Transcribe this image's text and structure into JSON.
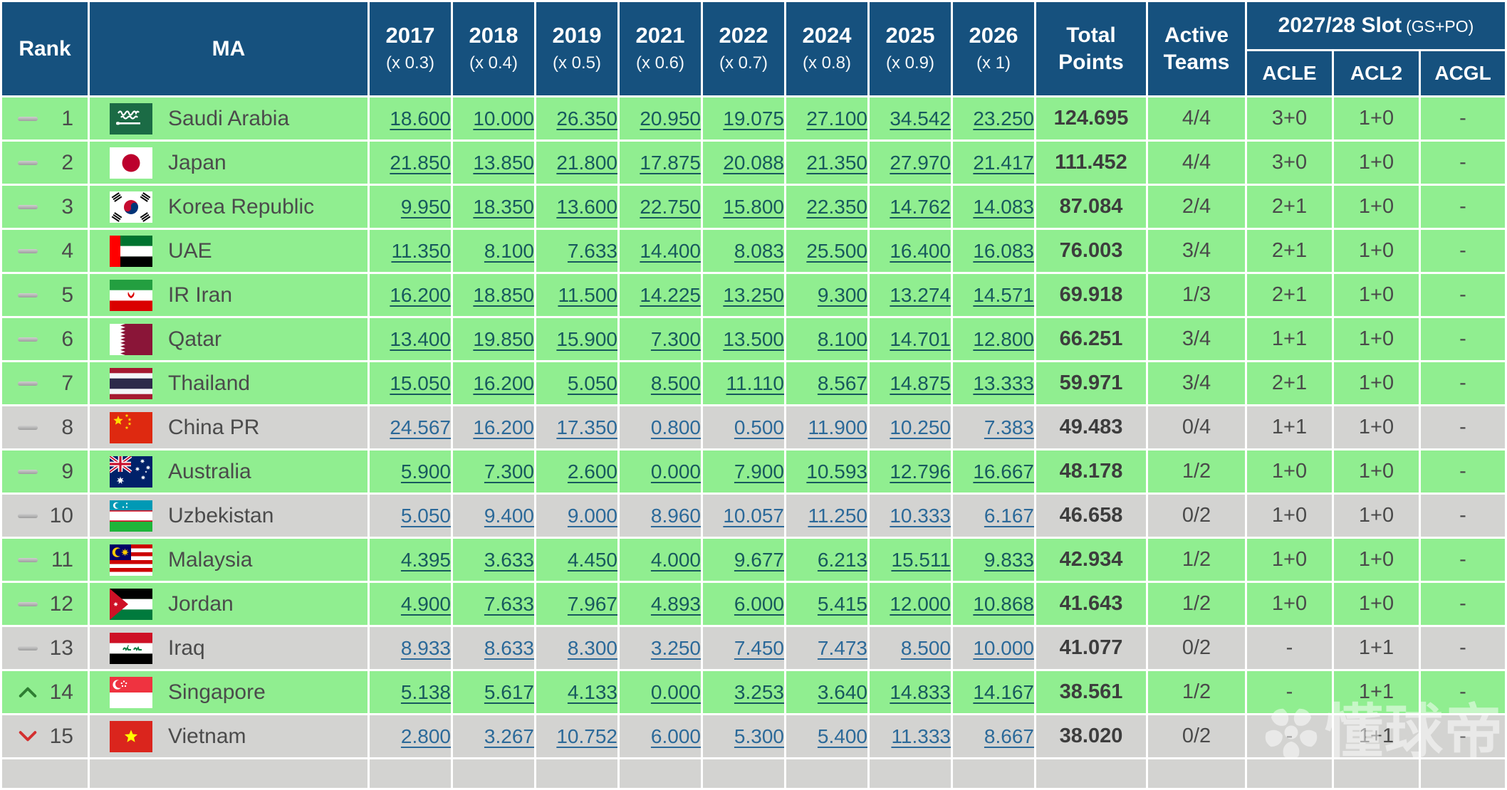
{
  "header": {
    "rank_label": "Rank",
    "ma_label": "MA",
    "years": [
      {
        "year": "2017",
        "multiplier": "(x 0.3)"
      },
      {
        "year": "2018",
        "multiplier": "(x 0.4)"
      },
      {
        "year": "2019",
        "multiplier": "(x 0.5)"
      },
      {
        "year": "2021",
        "multiplier": "(x 0.6)"
      },
      {
        "year": "2022",
        "multiplier": "(x 0.7)"
      },
      {
        "year": "2024",
        "multiplier": "(x 0.8)"
      },
      {
        "year": "2025",
        "multiplier": "(x 0.9)"
      },
      {
        "year": "2026",
        "multiplier": "(x 1)"
      }
    ],
    "total_points_label": "Total Points",
    "active_teams_label": "Active Teams",
    "slot_label": "2027/28 Slot",
    "slot_suffix": "(GS+PO)",
    "slot_columns": [
      "ACLE",
      "ACL2",
      "ACGL"
    ]
  },
  "rows": [
    {
      "movement": "same",
      "rank": "1",
      "country": "Saudi Arabia",
      "flag": "sa",
      "highlight": "green",
      "scores": [
        "18.600",
        "10.000",
        "26.350",
        "20.950",
        "19.075",
        "27.100",
        "34.542",
        "23.250"
      ],
      "total": "124.695",
      "active": "4/4",
      "slots": [
        "3+0",
        "1+0",
        "-"
      ]
    },
    {
      "movement": "same",
      "rank": "2",
      "country": "Japan",
      "flag": "jp",
      "highlight": "green",
      "scores": [
        "21.850",
        "13.850",
        "21.800",
        "17.875",
        "20.088",
        "21.350",
        "27.970",
        "21.417"
      ],
      "total": "111.452",
      "active": "4/4",
      "slots": [
        "3+0",
        "1+0",
        "-"
      ]
    },
    {
      "movement": "same",
      "rank": "3",
      "country": "Korea Republic",
      "flag": "kr",
      "highlight": "green",
      "scores": [
        "9.950",
        "18.350",
        "13.600",
        "22.750",
        "15.800",
        "22.350",
        "14.762",
        "14.083"
      ],
      "total": "87.084",
      "active": "2/4",
      "slots": [
        "2+1",
        "1+0",
        "-"
      ]
    },
    {
      "movement": "same",
      "rank": "4",
      "country": "UAE",
      "flag": "ae",
      "highlight": "green",
      "scores": [
        "11.350",
        "8.100",
        "7.633",
        "14.400",
        "8.083",
        "25.500",
        "16.400",
        "16.083"
      ],
      "total": "76.003",
      "active": "3/4",
      "slots": [
        "2+1",
        "1+0",
        "-"
      ]
    },
    {
      "movement": "same",
      "rank": "5",
      "country": "IR Iran",
      "flag": "ir",
      "highlight": "green",
      "scores": [
        "16.200",
        "18.850",
        "11.500",
        "14.225",
        "13.250",
        "9.300",
        "13.274",
        "14.571"
      ],
      "total": "69.918",
      "active": "1/3",
      "slots": [
        "2+1",
        "1+0",
        "-"
      ]
    },
    {
      "movement": "same",
      "rank": "6",
      "country": "Qatar",
      "flag": "qa",
      "highlight": "green",
      "scores": [
        "13.400",
        "19.850",
        "15.900",
        "7.300",
        "13.500",
        "8.100",
        "14.701",
        "12.800"
      ],
      "total": "66.251",
      "active": "3/4",
      "slots": [
        "1+1",
        "1+0",
        "-"
      ]
    },
    {
      "movement": "same",
      "rank": "7",
      "country": "Thailand",
      "flag": "th",
      "highlight": "green",
      "scores": [
        "15.050",
        "16.200",
        "5.050",
        "8.500",
        "11.110",
        "8.567",
        "14.875",
        "13.333"
      ],
      "total": "59.971",
      "active": "3/4",
      "slots": [
        "2+1",
        "1+0",
        "-"
      ]
    },
    {
      "movement": "same",
      "rank": "8",
      "country": "China PR",
      "flag": "cn",
      "highlight": "gray",
      "scores": [
        "24.567",
        "16.200",
        "17.350",
        "0.800",
        "0.500",
        "11.900",
        "10.250",
        "7.383"
      ],
      "total": "49.483",
      "active": "0/4",
      "slots": [
        "1+1",
        "1+0",
        "-"
      ]
    },
    {
      "movement": "same",
      "rank": "9",
      "country": "Australia",
      "flag": "au",
      "highlight": "green",
      "scores": [
        "5.900",
        "7.300",
        "2.600",
        "0.000",
        "7.900",
        "10.593",
        "12.796",
        "16.667"
      ],
      "total": "48.178",
      "active": "1/2",
      "slots": [
        "1+0",
        "1+0",
        "-"
      ]
    },
    {
      "movement": "same",
      "rank": "10",
      "country": "Uzbekistan",
      "flag": "uz",
      "highlight": "gray",
      "scores": [
        "5.050",
        "9.400",
        "9.000",
        "8.960",
        "10.057",
        "11.250",
        "10.333",
        "6.167"
      ],
      "total": "46.658",
      "active": "0/2",
      "slots": [
        "1+0",
        "1+0",
        "-"
      ]
    },
    {
      "movement": "same",
      "rank": "11",
      "country": "Malaysia",
      "flag": "my",
      "highlight": "green",
      "scores": [
        "4.395",
        "3.633",
        "4.450",
        "4.000",
        "9.677",
        "6.213",
        "15.511",
        "9.833"
      ],
      "total": "42.934",
      "active": "1/2",
      "slots": [
        "1+0",
        "1+0",
        "-"
      ]
    },
    {
      "movement": "same",
      "rank": "12",
      "country": "Jordan",
      "flag": "jo",
      "highlight": "green",
      "scores": [
        "4.900",
        "7.633",
        "7.967",
        "4.893",
        "6.000",
        "5.415",
        "12.000",
        "10.868"
      ],
      "total": "41.643",
      "active": "1/2",
      "slots": [
        "1+0",
        "1+0",
        "-"
      ]
    },
    {
      "movement": "same",
      "rank": "13",
      "country": "Iraq",
      "flag": "iq",
      "highlight": "gray",
      "scores": [
        "8.933",
        "8.633",
        "8.300",
        "3.250",
        "7.450",
        "7.473",
        "8.500",
        "10.000"
      ],
      "total": "41.077",
      "active": "0/2",
      "slots": [
        "-",
        "1+1",
        "-"
      ]
    },
    {
      "movement": "up",
      "rank": "14",
      "country": "Singapore",
      "flag": "sg",
      "highlight": "green",
      "scores": [
        "5.138",
        "5.617",
        "4.133",
        "0.000",
        "3.253",
        "3.640",
        "14.833",
        "14.167"
      ],
      "total": "38.561",
      "active": "1/2",
      "slots": [
        "-",
        "1+1",
        "-"
      ]
    },
    {
      "movement": "down",
      "rank": "15",
      "country": "Vietnam",
      "flag": "vn",
      "highlight": "gray",
      "scores": [
        "2.800",
        "3.267",
        "10.752",
        "6.000",
        "5.300",
        "5.400",
        "11.333",
        "8.667"
      ],
      "total": "38.020",
      "active": "0/2",
      "slots": [
        "-",
        "1+1",
        "-"
      ]
    }
  ],
  "watermark": {
    "text": "懂球帝"
  },
  "colors": {
    "header_bg": "#16517E",
    "row_green": "#90EE90",
    "row_gray": "#D3D3D1",
    "link_on_green": "#17595D",
    "link_on_gray": "#2B6999",
    "movement_up": "#2E7D32",
    "movement_down": "#D32F2F"
  }
}
